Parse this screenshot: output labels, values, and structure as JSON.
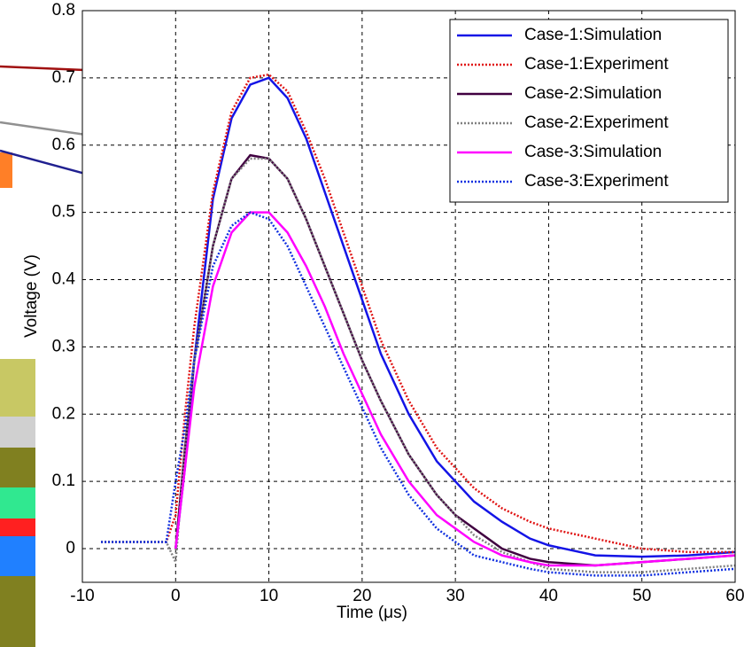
{
  "chart_data": {
    "type": "line",
    "x_label": "Time (μs)",
    "y_label": "Voltage (V)",
    "x": [
      -8,
      -1,
      0,
      1,
      2,
      4,
      6,
      8,
      10,
      12,
      14,
      16,
      18,
      20,
      22,
      25,
      28,
      30,
      32,
      35,
      38,
      40,
      45,
      50,
      55,
      60
    ],
    "series": [
      {
        "name": "Case-1:Simulation",
        "color": "#1414e6",
        "dash": false,
        "values": [
          null,
          null,
          0,
          0.12,
          0.28,
          0.52,
          0.64,
          0.69,
          0.7,
          0.67,
          0.61,
          0.53,
          0.45,
          0.37,
          0.29,
          0.2,
          0.13,
          0.1,
          0.07,
          0.04,
          0.015,
          0.005,
          -0.01,
          -0.012,
          -0.01,
          -0.005
        ]
      },
      {
        "name": "Case-1:Experiment",
        "color": "#e01414",
        "dash": true,
        "values": [
          0.01,
          0.01,
          0.05,
          0.2,
          0.33,
          0.53,
          0.65,
          0.7,
          0.705,
          0.68,
          0.62,
          0.55,
          0.47,
          0.39,
          0.31,
          0.22,
          0.15,
          0.12,
          0.09,
          0.06,
          0.04,
          0.03,
          0.015,
          0.0,
          -0.005,
          -0.005
        ]
      },
      {
        "name": "Case-2:Simulation",
        "color": "#400040",
        "dash": false,
        "values": [
          null,
          null,
          0,
          0.15,
          0.28,
          0.45,
          0.55,
          0.585,
          0.58,
          0.55,
          0.49,
          0.42,
          0.35,
          0.28,
          0.22,
          0.14,
          0.08,
          0.05,
          0.03,
          0.0,
          -0.015,
          -0.02,
          -0.025,
          -0.02,
          -0.015,
          -0.01
        ]
      },
      {
        "name": "Case-2:Experiment",
        "color": "#808080",
        "dash": true,
        "values": [
          0.01,
          0.01,
          -0.02,
          0.15,
          0.28,
          0.45,
          0.55,
          0.58,
          0.58,
          0.55,
          0.49,
          0.42,
          0.35,
          0.28,
          0.22,
          0.14,
          0.08,
          0.05,
          0.02,
          -0.005,
          -0.02,
          -0.03,
          -0.035,
          -0.035,
          -0.03,
          -0.025
        ]
      },
      {
        "name": "Case-3:Simulation",
        "color": "#ff00ff",
        "dash": false,
        "values": [
          null,
          null,
          0,
          0.12,
          0.24,
          0.39,
          0.47,
          0.5,
          0.5,
          0.47,
          0.42,
          0.36,
          0.29,
          0.23,
          0.17,
          0.1,
          0.05,
          0.03,
          0.01,
          -0.01,
          -0.02,
          -0.025,
          -0.025,
          -0.02,
          -0.015,
          -0.01
        ]
      },
      {
        "name": "Case-3:Experiment",
        "color": "#1030e0",
        "dash": true,
        "values": [
          0.01,
          0.01,
          0.1,
          0.18,
          0.28,
          0.42,
          0.48,
          0.5,
          0.49,
          0.45,
          0.39,
          0.33,
          0.27,
          0.21,
          0.15,
          0.08,
          0.03,
          0.01,
          -0.01,
          -0.02,
          -0.03,
          -0.035,
          -0.04,
          -0.04,
          -0.035,
          -0.03
        ]
      }
    ],
    "xlim": [
      -10,
      60
    ],
    "xticks": [
      -10,
      0,
      10,
      20,
      30,
      40,
      50,
      60
    ],
    "ylim": [
      -0.05,
      0.8
    ],
    "yticks": [
      0,
      0.1,
      0.2,
      0.3,
      0.4,
      0.5,
      0.6,
      0.7,
      0.8
    ],
    "grid": true,
    "legend": "top-right"
  }
}
